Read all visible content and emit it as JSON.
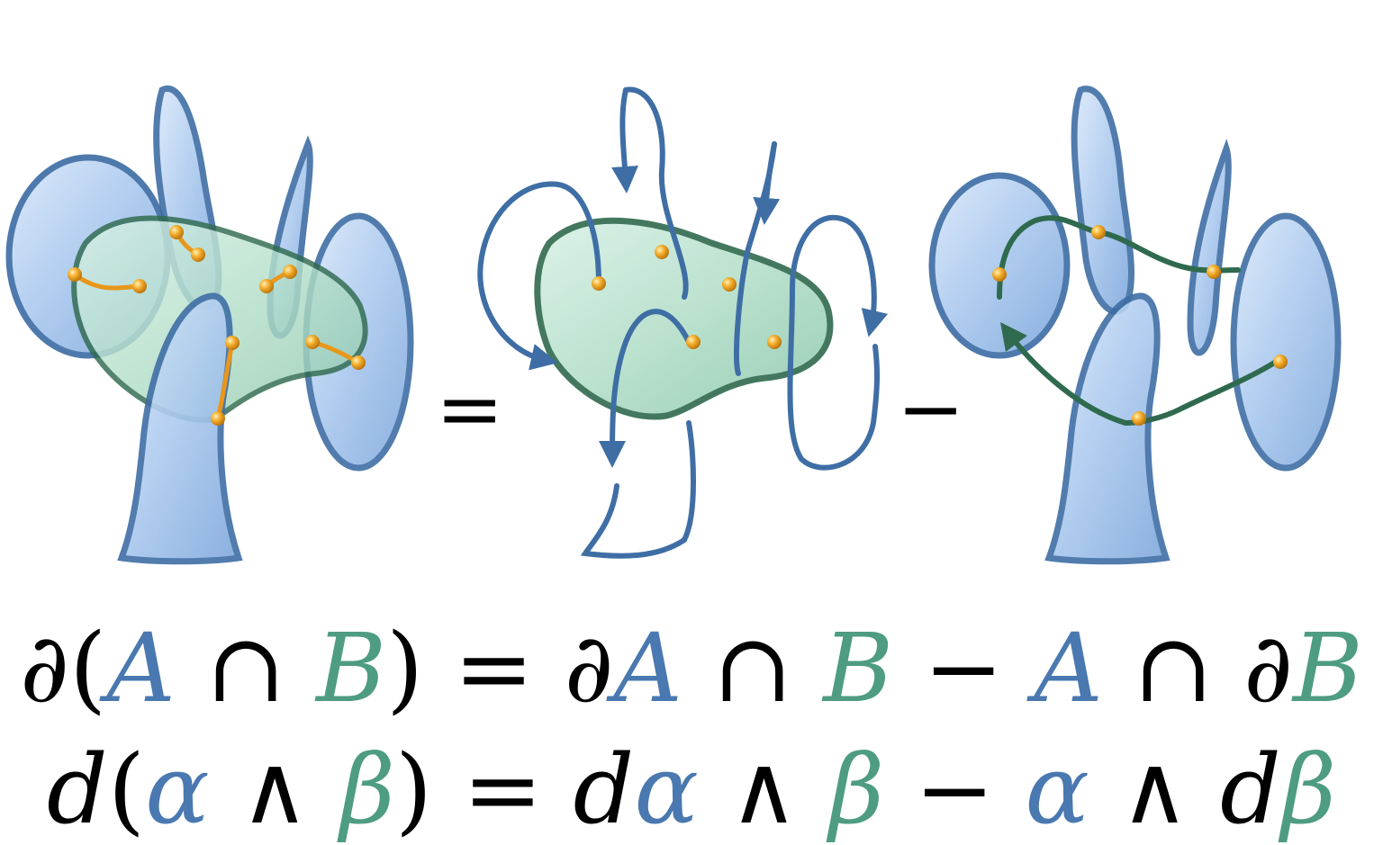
{
  "figure": {
    "operator_equals": "=",
    "operator_minus": "−"
  },
  "equations": {
    "sets": {
      "t1": "∂(",
      "A1": "A",
      "t2": " ∩ ",
      "B1": "B",
      "t3": ") = ∂",
      "A2": "A",
      "t4": " ∩ ",
      "B2": "B",
      "t5": " − ",
      "A3": "A",
      "t6": " ∩ ∂",
      "B3": "B"
    },
    "forms": {
      "t1": "d",
      "t1b": "(",
      "a1": "α",
      "t2": " ∧ ",
      "b1": "β",
      "t3": ") = ",
      "d2": "d",
      "a2": "α",
      "t4": " ∧ ",
      "b2": "β",
      "t5": " − ",
      "a3": "α",
      "t6": " ∧ ",
      "d3": "d",
      "b3": "β"
    }
  },
  "colors": {
    "set_A": "#4a78b0",
    "set_B": "#4e9c82",
    "intersection_points": "#f0a21e",
    "surface_blue": "#a9c8ee",
    "surface_green": "#b9e3cf",
    "curve_blue": "#3f6ea5",
    "curve_green": "#2f6a4e"
  }
}
